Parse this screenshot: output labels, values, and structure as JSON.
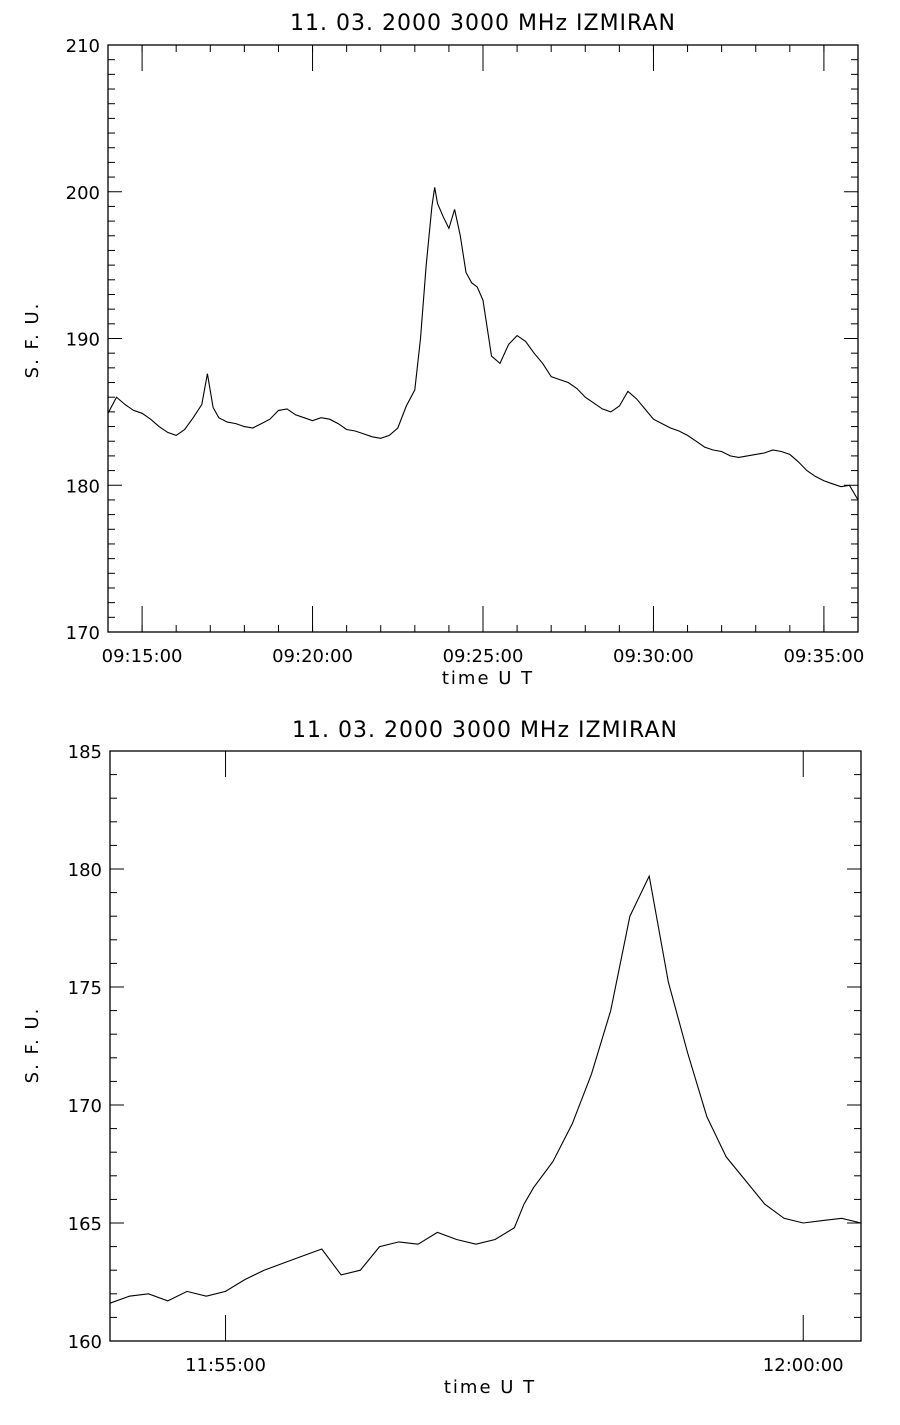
{
  "chart_data": [
    {
      "type": "line",
      "title": "11.  03.  2000    3000 MHz    IZMIRAN",
      "xlabel": "time   U T",
      "ylabel": "S. F. U.",
      "xlim": [
        "09:14:00",
        "09:36:00"
      ],
      "ylim": [
        170,
        210
      ],
      "x_ticks": [
        "09:15:00",
        "09:20:00",
        "09:25:00",
        "09:30:00",
        "09:35:00"
      ],
      "y_ticks": [
        "170",
        "180",
        "190",
        "200",
        "210"
      ],
      "grid": false,
      "series": [
        {
          "x": [
            "09:14:00",
            "09:14:15",
            "09:14:30",
            "09:14:45",
            "09:15:00",
            "09:15:15",
            "09:15:30",
            "09:15:45",
            "09:16:00",
            "09:16:15",
            "09:16:30",
            "09:16:45",
            "09:16:55",
            "09:17:05",
            "09:17:15",
            "09:17:30",
            "09:17:45",
            "09:18:00",
            "09:18:15",
            "09:18:30",
            "09:18:45",
            "09:19:00",
            "09:19:15",
            "09:19:30",
            "09:19:45",
            "09:20:00",
            "09:20:15",
            "09:20:30",
            "09:20:45",
            "09:21:00",
            "09:21:15",
            "09:21:30",
            "09:21:45",
            "09:22:00",
            "09:22:15",
            "09:22:30",
            "09:22:45",
            "09:23:00",
            "09:23:10",
            "09:23:20",
            "09:23:30",
            "09:23:35",
            "09:23:40",
            "09:23:50",
            "09:24:00",
            "09:24:10",
            "09:24:20",
            "09:24:30",
            "09:24:40",
            "09:24:50",
            "09:25:00",
            "09:25:15",
            "09:25:30",
            "09:25:45",
            "09:26:00",
            "09:26:15",
            "09:26:30",
            "09:26:45",
            "09:27:00",
            "09:27:15",
            "09:27:30",
            "09:27:45",
            "09:28:00",
            "09:28:15",
            "09:28:30",
            "09:28:45",
            "09:29:00",
            "09:29:15",
            "09:29:30",
            "09:29:45",
            "09:30:00",
            "09:30:15",
            "09:30:30",
            "09:30:45",
            "09:31:00",
            "09:31:15",
            "09:31:30",
            "09:31:45",
            "09:32:00",
            "09:32:15",
            "09:32:30",
            "09:32:45",
            "09:33:00",
            "09:33:15",
            "09:33:30",
            "09:33:45",
            "09:34:00",
            "09:34:15",
            "09:34:30",
            "09:34:45",
            "09:35:00",
            "09:35:15",
            "09:35:30",
            "09:35:45",
            "09:36:00"
          ],
          "values": [
            184.9,
            186.0,
            185.5,
            185.1,
            184.9,
            184.5,
            184.0,
            183.6,
            183.4,
            183.8,
            184.6,
            185.5,
            187.6,
            185.3,
            184.6,
            184.3,
            184.2,
            184.0,
            183.9,
            184.2,
            184.5,
            185.1,
            185.2,
            184.8,
            184.6,
            184.4,
            184.6,
            184.5,
            184.2,
            183.8,
            183.7,
            183.5,
            183.3,
            183.2,
            183.4,
            183.9,
            185.4,
            186.5,
            190.0,
            195.0,
            199.0,
            200.3,
            199.2,
            198.3,
            197.5,
            198.8,
            197.0,
            194.5,
            193.8,
            193.5,
            192.6,
            188.8,
            188.3,
            189.6,
            190.2,
            189.8,
            189.0,
            188.3,
            187.4,
            187.2,
            187.0,
            186.6,
            186.0,
            185.6,
            185.2,
            185.0,
            185.4,
            186.4,
            185.9,
            185.2,
            184.5,
            184.2,
            183.9,
            183.7,
            183.4,
            183.0,
            182.6,
            182.4,
            182.3,
            182.0,
            181.9,
            182.0,
            182.1,
            182.2,
            182.4,
            182.3,
            182.1,
            181.6,
            181.0,
            180.6,
            180.3,
            180.1,
            179.9,
            180.0,
            179.0
          ]
        }
      ]
    },
    {
      "type": "line",
      "title": "11.  03.  2000    3000 MHz    IZMIRAN",
      "xlabel": "time   U T",
      "ylabel": "S. F. U.",
      "xlim": [
        "11:54:00",
        "12:00:30"
      ],
      "ylim": [
        160,
        185
      ],
      "x_ticks": [
        "11:55:00",
        "12:00:00"
      ],
      "y_ticks": [
        "160",
        "165",
        "170",
        "175",
        "180",
        "185"
      ],
      "grid": false,
      "series": [
        {
          "x": [
            "11:54:00",
            "11:54:10",
            "11:54:20",
            "11:54:30",
            "11:54:40",
            "11:54:50",
            "11:55:00",
            "11:55:10",
            "11:55:20",
            "11:55:30",
            "11:55:40",
            "11:55:50",
            "11:56:00",
            "11:56:10",
            "11:56:20",
            "11:56:30",
            "11:56:40",
            "11:56:50",
            "11:57:00",
            "11:57:10",
            "11:57:20",
            "11:57:30",
            "11:57:35",
            "11:57:40",
            "11:57:50",
            "11:58:00",
            "11:58:10",
            "11:58:20",
            "11:58:25",
            "11:58:30",
            "11:58:40",
            "11:58:50",
            "11:59:00",
            "11:59:10",
            "11:59:20",
            "11:59:30",
            "11:59:40",
            "11:59:50",
            "12:00:00",
            "12:00:10",
            "12:00:20",
            "12:00:30"
          ],
          "values": [
            161.6,
            161.9,
            162.0,
            161.7,
            162.1,
            161.9,
            162.1,
            162.6,
            163.0,
            163.3,
            163.6,
            163.9,
            162.8,
            163.0,
            164.0,
            164.2,
            164.1,
            164.6,
            164.3,
            164.1,
            164.3,
            164.8,
            165.8,
            166.5,
            167.6,
            169.2,
            171.3,
            174.0,
            176.0,
            178.0,
            179.7,
            175.2,
            172.2,
            169.5,
            167.8,
            166.8,
            165.8,
            165.2,
            165.0,
            165.1,
            165.2,
            165.0
          ]
        }
      ]
    }
  ]
}
